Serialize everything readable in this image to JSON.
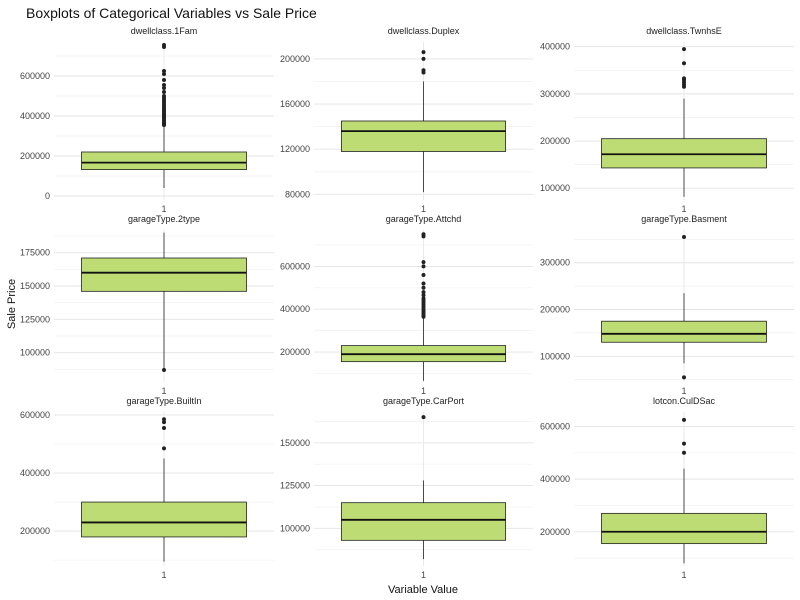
{
  "chart_data": {
    "type": "boxplot",
    "title": "Boxplots of Categorical Variables vs Sale Price",
    "xlabel": "Variable Value",
    "ylabel": "Sale Price",
    "fill_color": "#bddd74",
    "grid": true,
    "panels": [
      {
        "name": "dwellclass.1Fam",
        "category": "1",
        "ylim": [
          -20000,
          770000
        ],
        "yticks": [
          0,
          200000,
          400000,
          600000
        ],
        "ytick_labels": [
          "0",
          "200000",
          "400000",
          "600000"
        ],
        "min": 40000,
        "q1": 132000,
        "median": 167000,
        "q3": 220000,
        "max": 350000,
        "outliers": [
          355000,
          360000,
          365000,
          372000,
          380000,
          388000,
          395000,
          400000,
          405000,
          410000,
          418000,
          425000,
          432000,
          440000,
          450000,
          460000,
          470000,
          480000,
          490000,
          500000,
          520000,
          540000,
          555000,
          580000,
          610000,
          625000,
          745000,
          755000
        ]
      },
      {
        "name": "dwellclass.Duplex",
        "category": "1",
        "ylim": [
          75000,
          215000
        ],
        "yticks": [
          80000,
          120000,
          160000,
          200000
        ],
        "ytick_labels": [
          "80000",
          "120000",
          "160000",
          "200000"
        ],
        "min": 82000,
        "q1": 118000,
        "median": 136000,
        "q3": 145000,
        "max": 180000,
        "outliers": [
          188000,
          190000,
          200000,
          206000
        ]
      },
      {
        "name": "dwellclass.TwnhsE",
        "category": "1",
        "ylim": [
          75000,
          410000
        ],
        "yticks": [
          100000,
          200000,
          300000,
          400000
        ],
        "ytick_labels": [
          "100000",
          "200000",
          "300000",
          "400000"
        ],
        "min": 82000,
        "q1": 143000,
        "median": 172000,
        "q3": 205000,
        "max": 290000,
        "outliers": [
          315000,
          320000,
          325000,
          330000,
          333000,
          365000,
          395000
        ]
      },
      {
        "name": "garageType.2type",
        "category": "1",
        "ylim": [
          78000,
          192000
        ],
        "yticks": [
          100000,
          125000,
          150000,
          175000
        ],
        "ytick_labels": [
          "100000",
          "125000",
          "150000",
          "175000"
        ],
        "min": 87000,
        "q1": 146000,
        "median": 160000,
        "q3": 171000,
        "max": 190000,
        "outliers": [
          87000
        ]
      },
      {
        "name": "garageType.Attchd",
        "category": "1",
        "ylim": [
          60000,
          770000
        ],
        "yticks": [
          200000,
          400000,
          600000
        ],
        "ytick_labels": [
          "200000",
          "400000",
          "600000"
        ],
        "min": 65000,
        "q1": 155000,
        "median": 190000,
        "q3": 230000,
        "max": 360000,
        "outliers": [
          365000,
          372000,
          378000,
          385000,
          392000,
          400000,
          410000,
          420000,
          430000,
          440000,
          450000,
          465000,
          480000,
          500000,
          520000,
          560000,
          600000,
          620000,
          740000,
          750000
        ]
      },
      {
        "name": "garageType.Basment",
        "category": "1",
        "ylim": [
          45000,
          370000
        ],
        "yticks": [
          100000,
          200000,
          300000
        ],
        "ytick_labels": [
          "100000",
          "200000",
          "300000"
        ],
        "min": 85000,
        "q1": 130000,
        "median": 148000,
        "q3": 175000,
        "max": 235000,
        "outliers": [
          55000,
          355000
        ]
      },
      {
        "name": "garageType.BuiltIn",
        "category": "1",
        "ylim": [
          80000,
          610000
        ],
        "yticks": [
          200000,
          400000,
          600000
        ],
        "ytick_labels": [
          "200000",
          "400000",
          "600000"
        ],
        "min": 95000,
        "q1": 180000,
        "median": 230000,
        "q3": 300000,
        "max": 450000,
        "outliers": [
          485000,
          555000,
          575000,
          585000
        ]
      },
      {
        "name": "garageType.CarPort",
        "category": "1",
        "ylim": [
          78000,
          168000
        ],
        "yticks": [
          100000,
          125000,
          150000
        ],
        "ytick_labels": [
          "100000",
          "125000",
          "150000"
        ],
        "min": 82000,
        "q1": 93000,
        "median": 105000,
        "q3": 115000,
        "max": 128000,
        "outliers": [
          165000
        ]
      },
      {
        "name": "lotcon.CulDSac",
        "category": "1",
        "ylim": [
          70000,
          655000
        ],
        "yticks": [
          200000,
          400000,
          600000
        ],
        "ytick_labels": [
          "200000",
          "400000",
          "600000"
        ],
        "min": 80000,
        "q1": 155000,
        "median": 200000,
        "q3": 270000,
        "max": 440000,
        "outliers": [
          500000,
          535000,
          625000
        ]
      }
    ]
  }
}
